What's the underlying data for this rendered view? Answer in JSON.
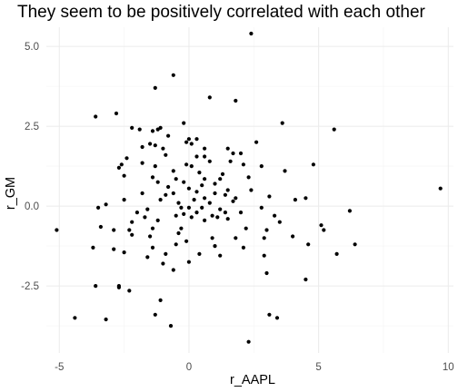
{
  "chart_data": {
    "type": "scatter",
    "title": "They seem to be positively correlated with each other",
    "xlabel": "r_AAPL",
    "ylabel": "r_GM",
    "xlim": [
      -5.5,
      10.2
    ],
    "ylim": [
      -4.6,
      5.6
    ],
    "x_ticks": [
      -5,
      0,
      5,
      10
    ],
    "x_tick_labels": [
      "-5",
      "0",
      "5",
      "10"
    ],
    "y_ticks": [
      -2.5,
      0,
      2.5,
      5
    ],
    "y_tick_labels": [
      "-2.5",
      "0.0",
      "2.5",
      "5.0"
    ],
    "grid": true,
    "point_color": "#000000",
    "points": [
      [
        2.4,
        5.4
      ],
      [
        -0.6,
        4.1
      ],
      [
        -1.3,
        3.7
      ],
      [
        0.8,
        3.4
      ],
      [
        1.8,
        3.3
      ],
      [
        -2.8,
        2.9
      ],
      [
        -3.6,
        2.8
      ],
      [
        -0.2,
        2.6
      ],
      [
        3.6,
        2.6
      ],
      [
        5.6,
        2.4
      ],
      [
        -2.2,
        2.45
      ],
      [
        -1.9,
        2.4
      ],
      [
        -1.2,
        2.4
      ],
      [
        -1.1,
        2.45
      ],
      [
        -0.8,
        2.2
      ],
      [
        0.0,
        2.1
      ],
      [
        -0.1,
        2.0
      ],
      [
        0.1,
        1.95
      ],
      [
        0.3,
        2.1
      ],
      [
        2.6,
        2.0
      ],
      [
        -1.5,
        1.95
      ],
      [
        -1.3,
        1.9
      ],
      [
        -1.8,
        1.85
      ],
      [
        -1.0,
        1.8
      ],
      [
        0.6,
        1.8
      ],
      [
        1.5,
        1.8
      ],
      [
        2.0,
        1.65
      ],
      [
        1.7,
        1.65
      ],
      [
        -0.9,
        1.6
      ],
      [
        0.3,
        1.55
      ],
      [
        -2.4,
        1.5
      ],
      [
        -2.6,
        1.3
      ],
      [
        -1.8,
        1.35
      ],
      [
        -1.3,
        1.25
      ],
      [
        -0.1,
        1.3
      ],
      [
        0.1,
        1.25
      ],
      [
        0.8,
        1.4
      ],
      [
        1.6,
        1.4
      ],
      [
        2.1,
        1.3
      ],
      [
        2.8,
        1.25
      ],
      [
        4.8,
        1.3
      ],
      [
        -2.7,
        1.2
      ],
      [
        -0.6,
        1.1
      ],
      [
        0.4,
        1.05
      ],
      [
        1.3,
        1.0
      ],
      [
        3.7,
        1.1
      ],
      [
        -2.5,
        0.95
      ],
      [
        -1.4,
        0.9
      ],
      [
        -0.5,
        0.85
      ],
      [
        0.6,
        0.85
      ],
      [
        1.2,
        0.85
      ],
      [
        2.3,
        0.9
      ],
      [
        -1.2,
        0.75
      ],
      [
        -0.2,
        0.75
      ],
      [
        1.0,
        0.7
      ],
      [
        -0.8,
        0.6
      ],
      [
        0.0,
        0.55
      ],
      [
        0.5,
        0.65
      ],
      [
        1.5,
        0.5
      ],
      [
        2.4,
        0.5
      ],
      [
        -1.8,
        0.4
      ],
      [
        -0.6,
        0.4
      ],
      [
        0.3,
        0.45
      ],
      [
        1.0,
        0.4
      ],
      [
        -0.9,
        0.35
      ],
      [
        1.4,
        0.35
      ],
      [
        -2.5,
        0.2
      ],
      [
        -1.1,
        0.2
      ],
      [
        0.2,
        0.2
      ],
      [
        0.6,
        0.25
      ],
      [
        1.8,
        0.25
      ],
      [
        3.1,
        0.3
      ],
      [
        4.1,
        0.2
      ],
      [
        4.5,
        0.25
      ],
      [
        -0.4,
        0.1
      ],
      [
        0.8,
        0.1
      ],
      [
        1.7,
        0.15
      ],
      [
        -3.5,
        -0.05
      ],
      [
        -1.6,
        -0.1
      ],
      [
        -0.3,
        -0.05
      ],
      [
        0.0,
        -0.05
      ],
      [
        0.5,
        -0.05
      ],
      [
        1.2,
        -0.1
      ],
      [
        2.8,
        -0.05
      ],
      [
        6.2,
        -0.15
      ],
      [
        -2.0,
        -0.2
      ],
      [
        -0.2,
        -0.25
      ],
      [
        0.3,
        -0.2
      ],
      [
        0.9,
        -0.3
      ],
      [
        1.4,
        -0.2
      ],
      [
        2.0,
        -0.2
      ],
      [
        3.3,
        -0.3
      ],
      [
        -1.7,
        -0.35
      ],
      [
        -0.5,
        -0.3
      ],
      [
        0.1,
        -0.35
      ],
      [
        1.1,
        -0.35
      ],
      [
        -2.2,
        -0.5
      ],
      [
        -1.2,
        -0.45
      ],
      [
        0.6,
        -0.45
      ],
      [
        1.5,
        -0.4
      ],
      [
        3.5,
        -0.5
      ],
      [
        5.1,
        -0.6
      ],
      [
        -5.1,
        -0.75
      ],
      [
        -3.4,
        -0.65
      ],
      [
        -2.9,
        -0.75
      ],
      [
        -2.3,
        -0.75
      ],
      [
        -1.4,
        -0.7
      ],
      [
        -0.3,
        -0.7
      ],
      [
        2.2,
        -0.7
      ],
      [
        3.0,
        -0.75
      ],
      [
        4.0,
        -0.95
      ],
      [
        5.2,
        -0.75
      ],
      [
        -2.2,
        -0.9
      ],
      [
        -1.5,
        -0.95
      ],
      [
        -0.1,
        -1.1
      ],
      [
        0.9,
        -1.0
      ],
      [
        1.8,
        -1.0
      ],
      [
        2.9,
        -1.0
      ],
      [
        -3.7,
        -1.3
      ],
      [
        -2.9,
        -1.35
      ],
      [
        -1.4,
        -1.3
      ],
      [
        -0.5,
        -1.2
      ],
      [
        1.0,
        -1.25
      ],
      [
        2.1,
        -1.3
      ],
      [
        4.6,
        -1.2
      ],
      [
        6.4,
        -1.2
      ],
      [
        -2.5,
        -1.45
      ],
      [
        -1.6,
        -1.6
      ],
      [
        -0.9,
        -1.5
      ],
      [
        0.4,
        -1.5
      ],
      [
        1.2,
        -1.55
      ],
      [
        2.9,
        -1.55
      ],
      [
        5.7,
        -1.5
      ],
      [
        -1.0,
        -1.8
      ],
      [
        0.0,
        -1.75
      ],
      [
        -0.6,
        -2.0
      ],
      [
        3.0,
        -2.1
      ],
      [
        4.5,
        -2.3
      ],
      [
        -3.6,
        -2.5
      ],
      [
        -2.7,
        -2.5
      ],
      [
        -2.7,
        -2.55
      ],
      [
        -2.3,
        -2.65
      ],
      [
        -1.1,
        -2.95
      ],
      [
        -1.3,
        -3.4
      ],
      [
        3.1,
        -3.4
      ],
      [
        3.4,
        -3.5
      ],
      [
        -4.4,
        -3.5
      ],
      [
        -3.2,
        -3.55
      ],
      [
        -0.7,
        -3.75
      ],
      [
        2.3,
        -4.25
      ],
      [
        9.7,
        0.55
      ],
      [
        -1.4,
        2.35
      ],
      [
        0.6,
        1.55
      ],
      [
        -0.4,
        -0.85
      ],
      [
        -3.2,
        0.05
      ]
    ]
  }
}
